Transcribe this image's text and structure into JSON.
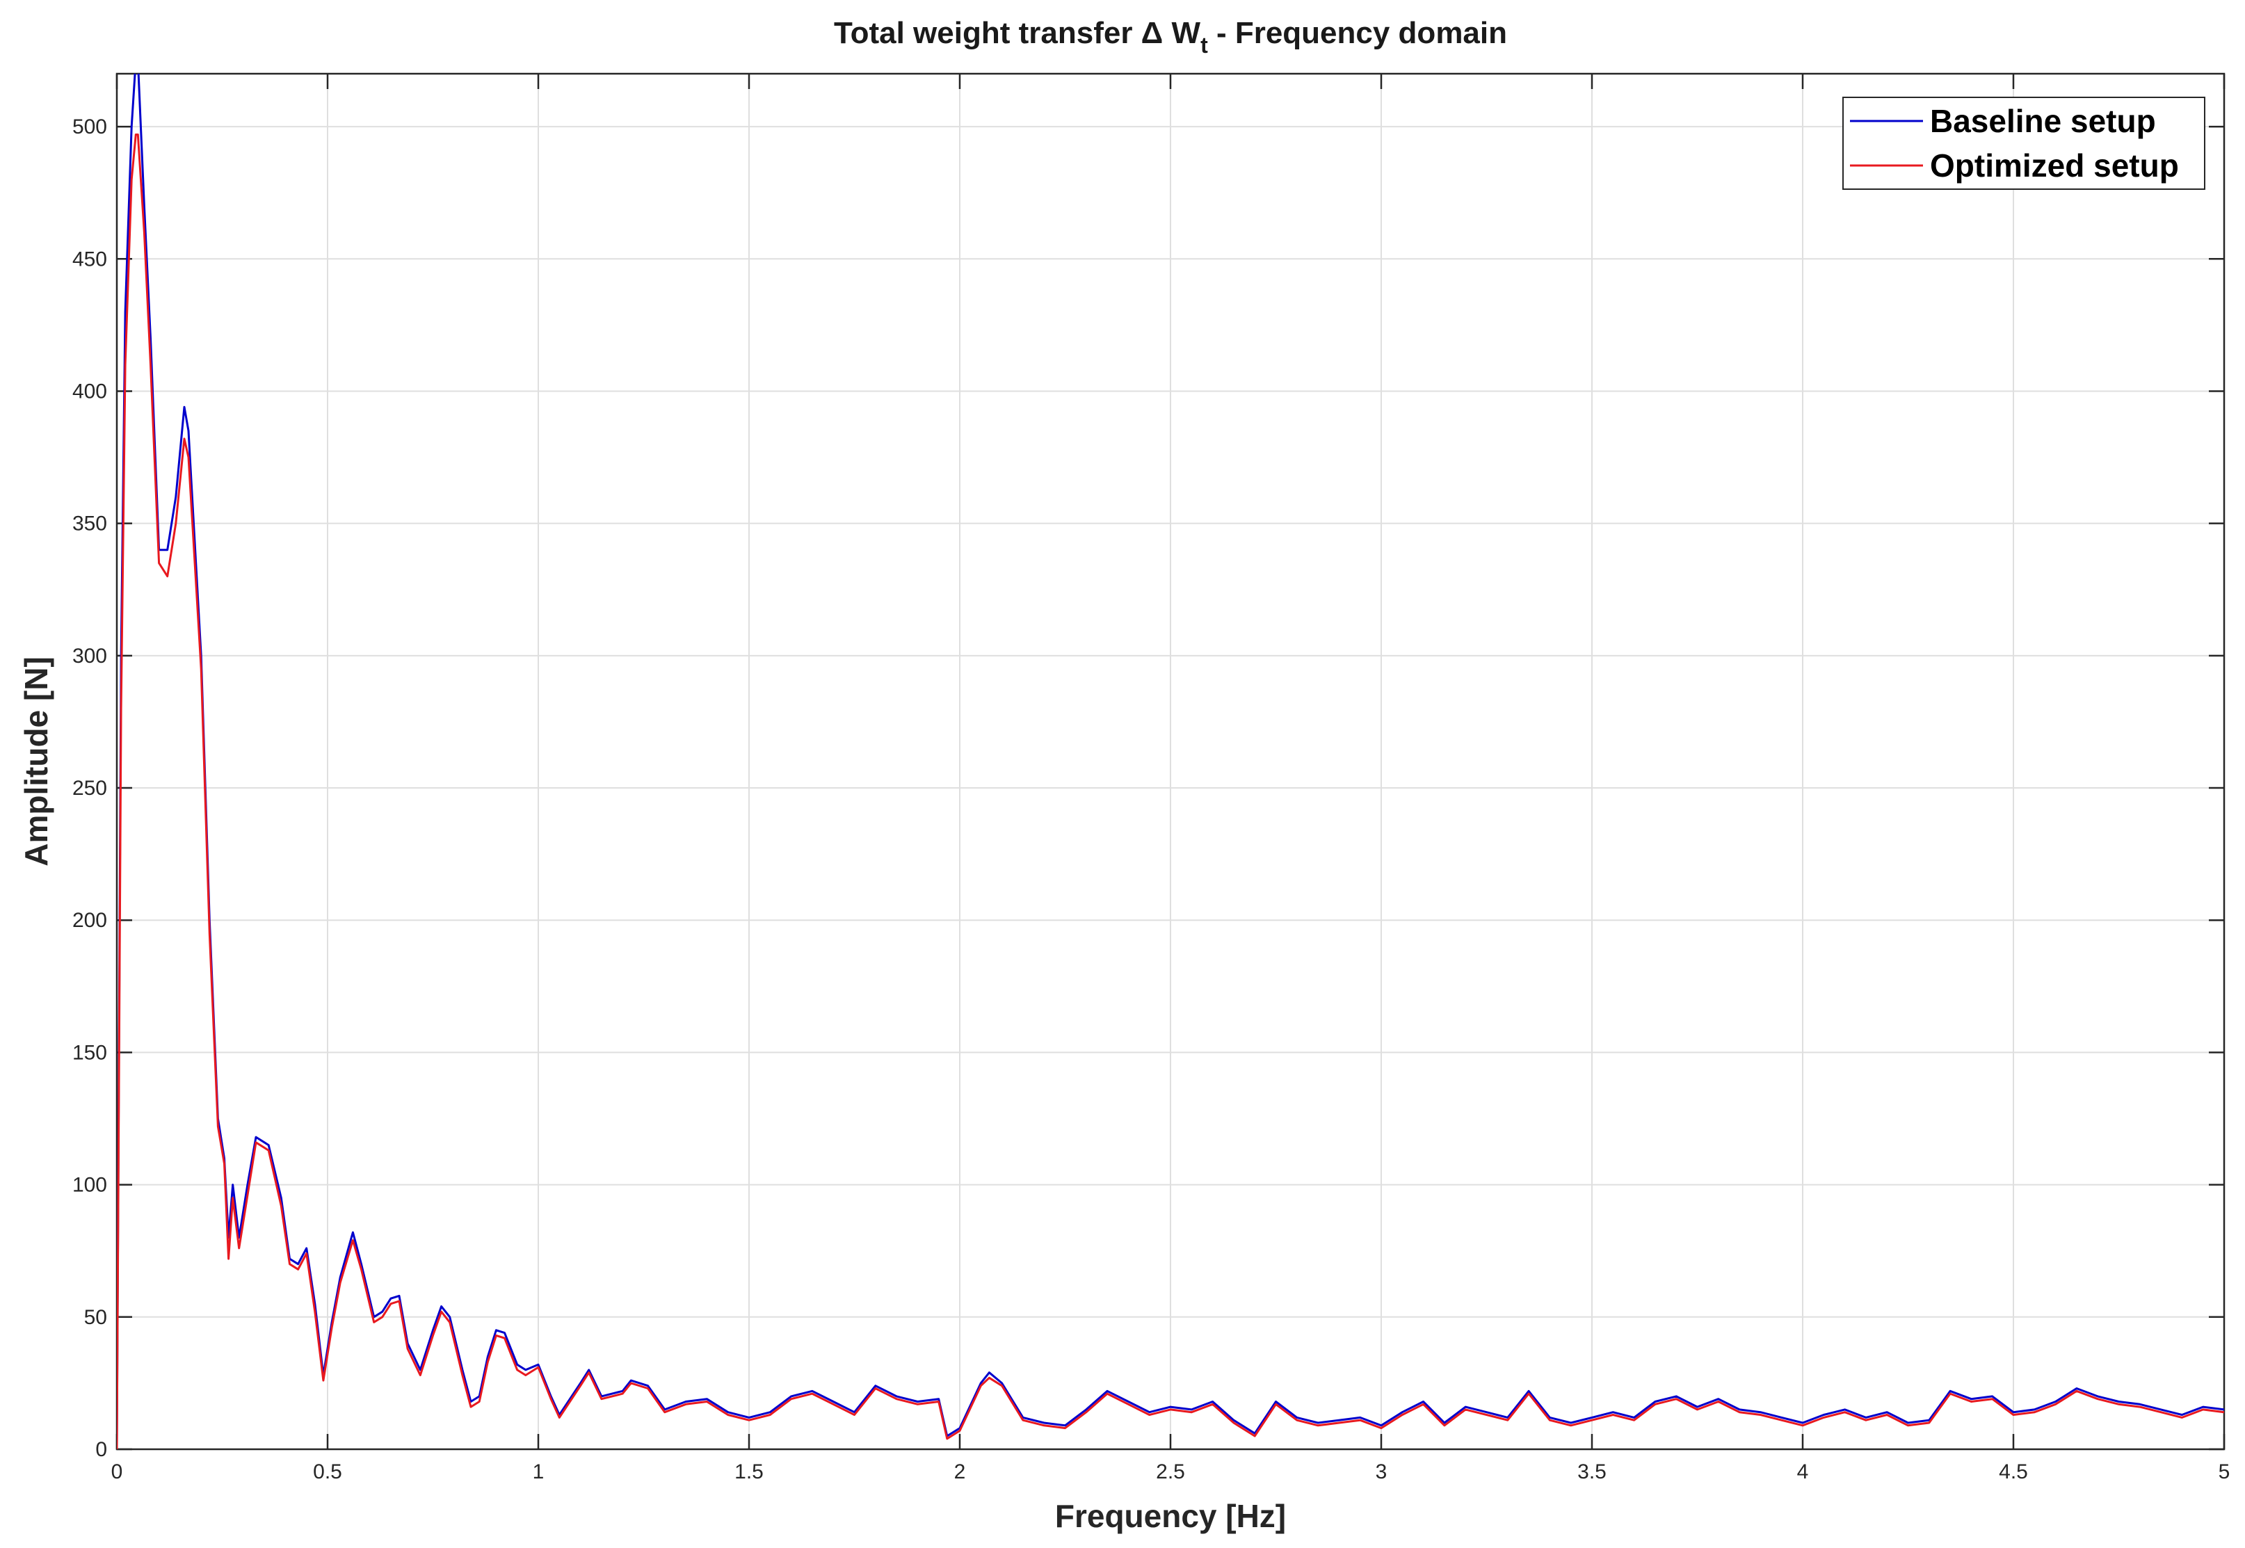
{
  "chart_data": {
    "type": "line",
    "title": {
      "prefix": "Total weight transfer ",
      "symbol": "Δ",
      "var": " W",
      "sub": "t",
      "suffix": " - Frequency domain"
    },
    "xlabel": "Frequency [Hz]",
    "ylabel": "Amplitude [N]",
    "xlim": [
      0,
      5
    ],
    "ylim": [
      0,
      520
    ],
    "xticks": [
      0,
      0.5,
      1,
      1.5,
      2,
      2.5,
      3,
      3.5,
      4,
      4.5,
      5
    ],
    "xtick_labels": [
      "0",
      "0.5",
      "1",
      "1.5",
      "2",
      "2.5",
      "3",
      "3.5",
      "4",
      "4.5",
      "5"
    ],
    "yticks": [
      0,
      50,
      100,
      150,
      200,
      250,
      300,
      350,
      400,
      450,
      500
    ],
    "ytick_labels": [
      "0",
      "50",
      "100",
      "150",
      "200",
      "250",
      "300",
      "350",
      "400",
      "450",
      "500"
    ],
    "grid": true,
    "legend_position": "top-right",
    "series": [
      {
        "name": "Baseline setup",
        "color": "#0000cc",
        "points": [
          [
            0,
            0
          ],
          [
            0.01,
            300
          ],
          [
            0.02,
            430
          ],
          [
            0.035,
            500
          ],
          [
            0.045,
            525
          ],
          [
            0.05,
            525
          ],
          [
            0.065,
            470
          ],
          [
            0.08,
            420
          ],
          [
            0.1,
            340
          ],
          [
            0.12,
            340
          ],
          [
            0.14,
            360
          ],
          [
            0.16,
            394
          ],
          [
            0.17,
            385
          ],
          [
            0.2,
            300
          ],
          [
            0.22,
            200
          ],
          [
            0.24,
            125
          ],
          [
            0.255,
            110
          ],
          [
            0.265,
            80
          ],
          [
            0.275,
            100
          ],
          [
            0.29,
            80
          ],
          [
            0.31,
            100
          ],
          [
            0.33,
            118
          ],
          [
            0.36,
            115
          ],
          [
            0.39,
            95
          ],
          [
            0.41,
            72
          ],
          [
            0.43,
            70
          ],
          [
            0.45,
            76
          ],
          [
            0.47,
            55
          ],
          [
            0.49,
            28
          ],
          [
            0.51,
            48
          ],
          [
            0.53,
            65
          ],
          [
            0.56,
            82
          ],
          [
            0.58,
            70
          ],
          [
            0.61,
            50
          ],
          [
            0.63,
            52
          ],
          [
            0.65,
            57
          ],
          [
            0.67,
            58
          ],
          [
            0.69,
            40
          ],
          [
            0.72,
            30
          ],
          [
            0.75,
            45
          ],
          [
            0.77,
            54
          ],
          [
            0.79,
            50
          ],
          [
            0.82,
            30
          ],
          [
            0.84,
            18
          ],
          [
            0.86,
            20
          ],
          [
            0.88,
            35
          ],
          [
            0.9,
            45
          ],
          [
            0.92,
            44
          ],
          [
            0.95,
            32
          ],
          [
            0.97,
            30
          ],
          [
            1.0,
            32
          ],
          [
            1.03,
            20
          ],
          [
            1.05,
            13
          ],
          [
            1.1,
            25
          ],
          [
            1.12,
            30
          ],
          [
            1.15,
            20
          ],
          [
            1.2,
            22
          ],
          [
            1.22,
            26
          ],
          [
            1.26,
            24
          ],
          [
            1.3,
            15
          ],
          [
            1.35,
            18
          ],
          [
            1.4,
            19
          ],
          [
            1.45,
            14
          ],
          [
            1.5,
            12
          ],
          [
            1.55,
            14
          ],
          [
            1.6,
            20
          ],
          [
            1.65,
            22
          ],
          [
            1.7,
            18
          ],
          [
            1.75,
            14
          ],
          [
            1.8,
            24
          ],
          [
            1.85,
            20
          ],
          [
            1.9,
            18
          ],
          [
            1.95,
            19
          ],
          [
            1.97,
            5
          ],
          [
            2.0,
            8
          ],
          [
            2.05,
            25
          ],
          [
            2.07,
            29
          ],
          [
            2.1,
            25
          ],
          [
            2.15,
            12
          ],
          [
            2.2,
            10
          ],
          [
            2.25,
            9
          ],
          [
            2.3,
            15
          ],
          [
            2.35,
            22
          ],
          [
            2.4,
            18
          ],
          [
            2.45,
            14
          ],
          [
            2.5,
            16
          ],
          [
            2.55,
            15
          ],
          [
            2.6,
            18
          ],
          [
            2.65,
            11
          ],
          [
            2.7,
            6
          ],
          [
            2.75,
            18
          ],
          [
            2.8,
            12
          ],
          [
            2.85,
            10
          ],
          [
            2.9,
            11
          ],
          [
            2.95,
            12
          ],
          [
            3.0,
            9
          ],
          [
            3.05,
            14
          ],
          [
            3.1,
            18
          ],
          [
            3.15,
            10
          ],
          [
            3.2,
            16
          ],
          [
            3.25,
            14
          ],
          [
            3.3,
            12
          ],
          [
            3.35,
            22
          ],
          [
            3.4,
            12
          ],
          [
            3.45,
            10
          ],
          [
            3.5,
            12
          ],
          [
            3.55,
            14
          ],
          [
            3.6,
            12
          ],
          [
            3.65,
            18
          ],
          [
            3.7,
            20
          ],
          [
            3.75,
            16
          ],
          [
            3.8,
            19
          ],
          [
            3.85,
            15
          ],
          [
            3.9,
            14
          ],
          [
            3.95,
            12
          ],
          [
            4.0,
            10
          ],
          [
            4.05,
            13
          ],
          [
            4.1,
            15
          ],
          [
            4.15,
            12
          ],
          [
            4.2,
            14
          ],
          [
            4.25,
            10
          ],
          [
            4.3,
            11
          ],
          [
            4.35,
            22
          ],
          [
            4.4,
            19
          ],
          [
            4.45,
            20
          ],
          [
            4.5,
            14
          ],
          [
            4.55,
            15
          ],
          [
            4.6,
            18
          ],
          [
            4.65,
            23
          ],
          [
            4.7,
            20
          ],
          [
            4.75,
            18
          ],
          [
            4.8,
            17
          ],
          [
            4.85,
            15
          ],
          [
            4.9,
            13
          ],
          [
            4.95,
            16
          ],
          [
            5.0,
            15
          ]
        ]
      },
      {
        "name": "Optimized setup",
        "color": "#e8191f",
        "points": [
          [
            0,
            0
          ],
          [
            0.01,
            280
          ],
          [
            0.02,
            410
          ],
          [
            0.035,
            480
          ],
          [
            0.045,
            497
          ],
          [
            0.05,
            497
          ],
          [
            0.065,
            460
          ],
          [
            0.08,
            410
          ],
          [
            0.1,
            335
          ],
          [
            0.12,
            330
          ],
          [
            0.14,
            350
          ],
          [
            0.16,
            382
          ],
          [
            0.17,
            375
          ],
          [
            0.2,
            295
          ],
          [
            0.22,
            195
          ],
          [
            0.24,
            122
          ],
          [
            0.255,
            108
          ],
          [
            0.265,
            72
          ],
          [
            0.275,
            95
          ],
          [
            0.29,
            76
          ],
          [
            0.31,
            96
          ],
          [
            0.33,
            116
          ],
          [
            0.36,
            113
          ],
          [
            0.39,
            92
          ],
          [
            0.41,
            70
          ],
          [
            0.43,
            68
          ],
          [
            0.45,
            74
          ],
          [
            0.47,
            52
          ],
          [
            0.49,
            26
          ],
          [
            0.51,
            46
          ],
          [
            0.53,
            63
          ],
          [
            0.56,
            79
          ],
          [
            0.58,
            68
          ],
          [
            0.61,
            48
          ],
          [
            0.63,
            50
          ],
          [
            0.65,
            55
          ],
          [
            0.67,
            56
          ],
          [
            0.69,
            38
          ],
          [
            0.72,
            28
          ],
          [
            0.75,
            43
          ],
          [
            0.77,
            52
          ],
          [
            0.79,
            48
          ],
          [
            0.82,
            28
          ],
          [
            0.84,
            16
          ],
          [
            0.86,
            18
          ],
          [
            0.88,
            33
          ],
          [
            0.9,
            43
          ],
          [
            0.92,
            42
          ],
          [
            0.95,
            30
          ],
          [
            0.97,
            28
          ],
          [
            1.0,
            31
          ],
          [
            1.03,
            19
          ],
          [
            1.05,
            12
          ],
          [
            1.1,
            24
          ],
          [
            1.12,
            29
          ],
          [
            1.15,
            19
          ],
          [
            1.2,
            21
          ],
          [
            1.22,
            25
          ],
          [
            1.26,
            23
          ],
          [
            1.3,
            14
          ],
          [
            1.35,
            17
          ],
          [
            1.4,
            18
          ],
          [
            1.45,
            13
          ],
          [
            1.5,
            11
          ],
          [
            1.55,
            13
          ],
          [
            1.6,
            19
          ],
          [
            1.65,
            21
          ],
          [
            1.7,
            17
          ],
          [
            1.75,
            13
          ],
          [
            1.8,
            23
          ],
          [
            1.85,
            19
          ],
          [
            1.9,
            17
          ],
          [
            1.95,
            18
          ],
          [
            1.97,
            4
          ],
          [
            2.0,
            7
          ],
          [
            2.05,
            24
          ],
          [
            2.07,
            27
          ],
          [
            2.1,
            24
          ],
          [
            2.15,
            11
          ],
          [
            2.2,
            9
          ],
          [
            2.25,
            8
          ],
          [
            2.3,
            14
          ],
          [
            2.35,
            21
          ],
          [
            2.4,
            17
          ],
          [
            2.45,
            13
          ],
          [
            2.5,
            15
          ],
          [
            2.55,
            14
          ],
          [
            2.6,
            17
          ],
          [
            2.65,
            10
          ],
          [
            2.7,
            5
          ],
          [
            2.75,
            17
          ],
          [
            2.8,
            11
          ],
          [
            2.85,
            9
          ],
          [
            2.9,
            10
          ],
          [
            2.95,
            11
          ],
          [
            3.0,
            8
          ],
          [
            3.05,
            13
          ],
          [
            3.1,
            17
          ],
          [
            3.15,
            9
          ],
          [
            3.2,
            15
          ],
          [
            3.25,
            13
          ],
          [
            3.3,
            11
          ],
          [
            3.35,
            21
          ],
          [
            3.4,
            11
          ],
          [
            3.45,
            9
          ],
          [
            3.5,
            11
          ],
          [
            3.55,
            13
          ],
          [
            3.6,
            11
          ],
          [
            3.65,
            17
          ],
          [
            3.7,
            19
          ],
          [
            3.75,
            15
          ],
          [
            3.8,
            18
          ],
          [
            3.85,
            14
          ],
          [
            3.9,
            13
          ],
          [
            3.95,
            11
          ],
          [
            4.0,
            9
          ],
          [
            4.05,
            12
          ],
          [
            4.1,
            14
          ],
          [
            4.15,
            11
          ],
          [
            4.2,
            13
          ],
          [
            4.25,
            9
          ],
          [
            4.3,
            10
          ],
          [
            4.35,
            21
          ],
          [
            4.4,
            18
          ],
          [
            4.45,
            19
          ],
          [
            4.5,
            13
          ],
          [
            4.55,
            14
          ],
          [
            4.6,
            17
          ],
          [
            4.65,
            22
          ],
          [
            4.7,
            19
          ],
          [
            4.75,
            17
          ],
          [
            4.8,
            16
          ],
          [
            4.85,
            14
          ],
          [
            4.9,
            12
          ],
          [
            4.95,
            15
          ],
          [
            5.0,
            14
          ]
        ]
      }
    ]
  }
}
